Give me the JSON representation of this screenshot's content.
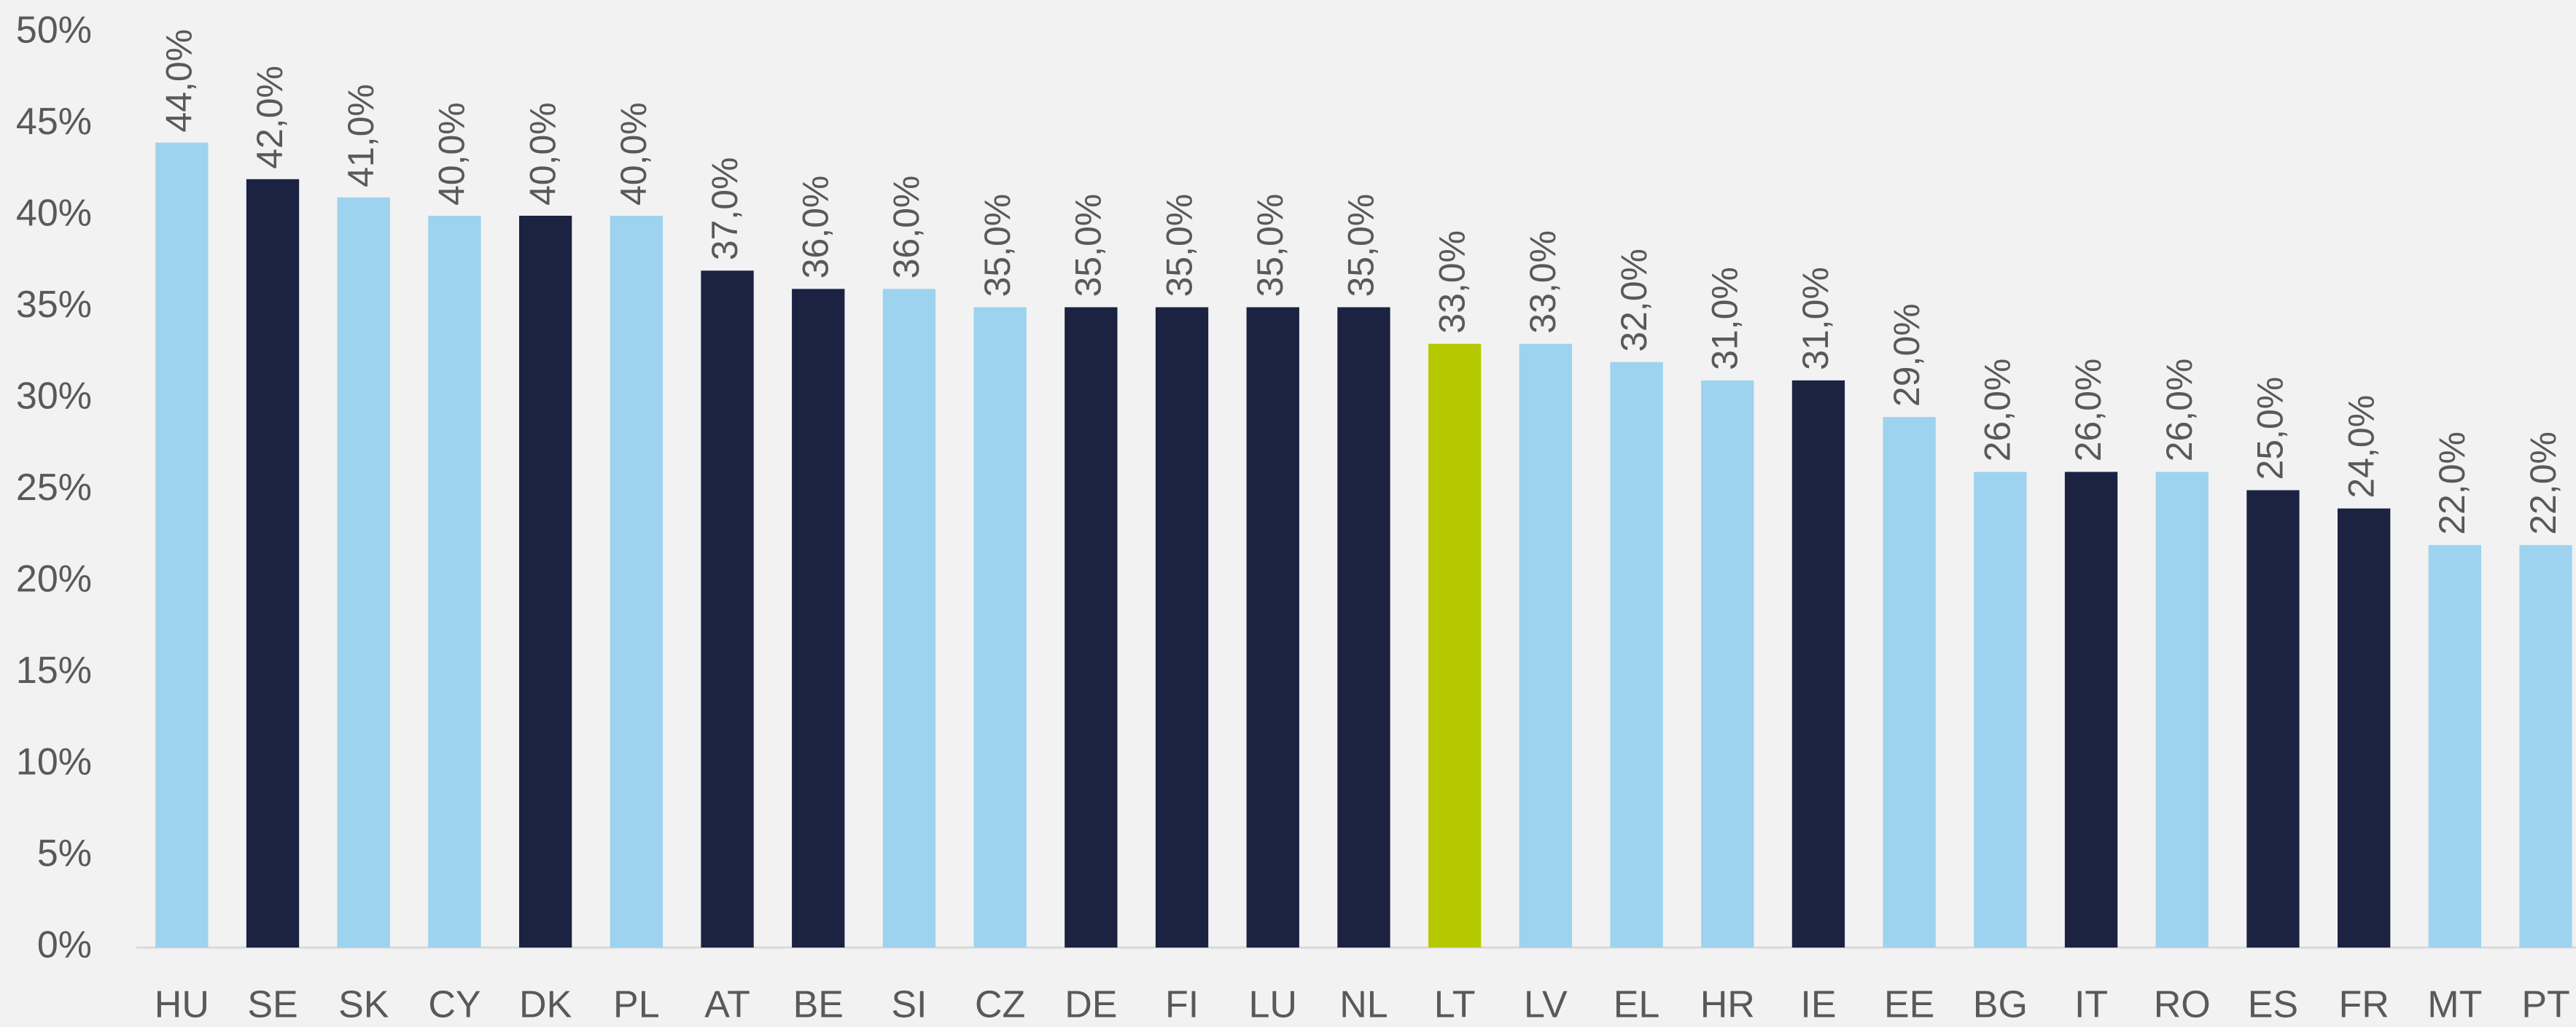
{
  "chart_data": {
    "type": "bar",
    "categories": [
      "HU",
      "SE",
      "SK",
      "CY",
      "DK",
      "PL",
      "AT",
      "BE",
      "SI",
      "CZ",
      "DE",
      "FI",
      "LU",
      "NL",
      "LT",
      "LV",
      "EL",
      "HR",
      "IE",
      "EE",
      "BG",
      "IT",
      "RO",
      "ES",
      "FR",
      "MT",
      "PT"
    ],
    "values": [
      44,
      42,
      41,
      40,
      40,
      40,
      37,
      36,
      36,
      35,
      35,
      35,
      35,
      35,
      33,
      33,
      32,
      31,
      31,
      29,
      26,
      26,
      26,
      25,
      24,
      22,
      22
    ],
    "value_labels": [
      "44,0%",
      "42,0%",
      "41,0%",
      "40,0%",
      "40,0%",
      "40,0%",
      "37,0%",
      "36,0%",
      "36,0%",
      "35,0%",
      "35,0%",
      "35,0%",
      "35,0%",
      "35,0%",
      "33,0%",
      "33,0%",
      "32,0%",
      "31,0%",
      "31,0%",
      "29,0%",
      "26,0%",
      "26,0%",
      "26,0%",
      "25,0%",
      "24,0%",
      "22,0%",
      "22,0%"
    ],
    "colors": [
      "#9dd3ee",
      "#1b2242",
      "#9dd3ee",
      "#9dd3ee",
      "#1b2242",
      "#9dd3ee",
      "#1b2242",
      "#1b2242",
      "#9dd3ee",
      "#9dd3ee",
      "#1b2242",
      "#1b2242",
      "#1b2242",
      "#1b2242",
      "#b5c900",
      "#9dd3ee",
      "#9dd3ee",
      "#9dd3ee",
      "#1b2242",
      "#9dd3ee",
      "#9dd3ee",
      "#1b2242",
      "#9dd3ee",
      "#1b2242",
      "#1b2242",
      "#9dd3ee",
      "#9dd3ee"
    ],
    "ylim": [
      0,
      50
    ],
    "yticks": [
      {
        "value": 0,
        "label": "0%"
      },
      {
        "value": 5,
        "label": "5%"
      },
      {
        "value": 10,
        "label": "10%"
      },
      {
        "value": 15,
        "label": "15%"
      },
      {
        "value": 20,
        "label": "20%"
      },
      {
        "value": 25,
        "label": "25%"
      },
      {
        "value": 30,
        "label": "30%"
      },
      {
        "value": 35,
        "label": "35%"
      },
      {
        "value": 40,
        "label": "40%"
      },
      {
        "value": 45,
        "label": "45%"
      },
      {
        "value": 50,
        "label": "50%"
      }
    ],
    "grid": false
  }
}
